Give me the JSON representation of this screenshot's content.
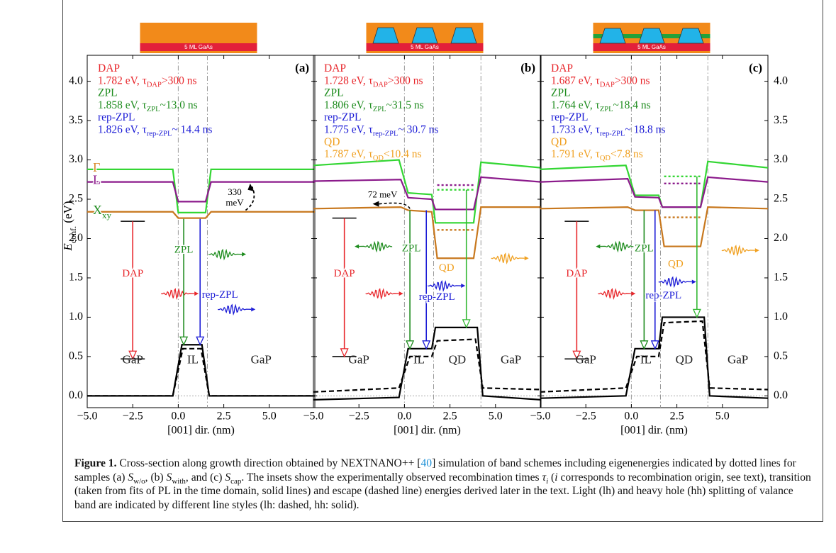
{
  "chart_data": [
    {
      "type": "band",
      "title": "(a)",
      "ylabel": {
        "text": "E",
        "sub": "conf.",
        "unit": " (eV)"
      },
      "xlabel": "[001] dir. (nm)",
      "xlim": [
        -5,
        7.5
      ],
      "ylim": [
        -0.15,
        4.33
      ],
      "xticks": [
        {
          "value": -5,
          "label": "−5.0"
        },
        {
          "value": -2.5,
          "label": "−2.5"
        },
        {
          "value": 0,
          "label": "0.0"
        },
        2.5,
        {
          "value": 5,
          "label": "5.0"
        }
      ],
      "yticks": [
        {
          "value": 0,
          "label": "0.0"
        },
        0.5,
        {
          "value": 1,
          "label": "1.0"
        },
        1.5,
        {
          "value": 2,
          "label": "2.0"
        },
        2.5,
        {
          "value": 3,
          "label": "3.0"
        },
        3.5,
        {
          "value": 4,
          "label": "4.0"
        }
      ],
      "ytick_labels": "left",
      "boundaries": [
        0,
        1.6
      ],
      "inset": {
        "label": "5 ML GaAs",
        "dots": false,
        "cap": false
      },
      "series": [
        {
          "color": "#33d633",
          "dash": "solid",
          "x": [
            -5,
            -0.3,
            0,
            1.5,
            1.8,
            7.5
          ],
          "values": [
            2.88,
            2.88,
            2.33,
            2.33,
            2.88,
            2.88
          ]
        },
        {
          "color": "#8b1a8b",
          "dash": "solid",
          "x": [
            -5,
            -0.3,
            0,
            1.5,
            1.8,
            7.5
          ],
          "values": [
            2.72,
            2.72,
            2.47,
            2.47,
            2.72,
            2.72
          ]
        },
        {
          "color": "#c8781e",
          "dash": "solid",
          "x": [
            -5,
            -0.3,
            0,
            1.5,
            1.8,
            7.5
          ],
          "values": [
            2.34,
            2.34,
            2.26,
            2.26,
            2.34,
            2.34
          ]
        },
        {
          "color": "#000000",
          "dash": "solid",
          "x": [
            -5,
            -0.3,
            0.2,
            1.3,
            1.7,
            7.5
          ],
          "values": [
            0,
            0,
            0.65,
            0.65,
            0,
            0
          ]
        },
        {
          "color": "#000000",
          "dash": "dashed",
          "x": [
            -5,
            -0.3,
            0.25,
            1.25,
            1.7,
            7.5
          ],
          "values": [
            0,
            0,
            0.6,
            0.6,
            0,
            0
          ]
        }
      ],
      "band_labels": [
        {
          "text": "Γ",
          "color": "#d88a2a",
          "series": 0
        },
        {
          "text": "L",
          "color": "#8b1a8b",
          "series": 1
        },
        {
          "text": "X",
          "sub": "xy",
          "color": "#1e8c1e",
          "series": 2
        }
      ],
      "eigen": [],
      "transitions": [
        {
          "label": "DAP",
          "color": "#e8262b",
          "label_color": "#e8262b",
          "x": -2.5,
          "from": 2.22,
          "to": 0.47,
          "bars": true
        },
        {
          "label": "ZPL",
          "color": "#1e8c1e",
          "label_color": "#1e8c1e",
          "x": 0.3,
          "from": 2.25,
          "to": 0.65,
          "bars": false
        },
        {
          "label": "rep-ZPL",
          "color": "#1c1cd6",
          "label_color": "#1c1cd6",
          "x": 1.2,
          "from": 2.25,
          "to": 0.65,
          "bars": false
        }
      ],
      "regions": [
        "GaP",
        "IL",
        "GaP"
      ],
      "annotation": [
        "330",
        "meV"
      ],
      "info": [
        {
          "color": "#e8262b",
          "text": "DAP"
        },
        {
          "color": "#e8262b",
          "text": "1.782 eV, τ",
          "sub": "DAP",
          "rest": ">300 ns"
        },
        {
          "color": "#1e8c1e",
          "text": "ZPL"
        },
        {
          "color": "#1e8c1e",
          "text": "1.858 eV, τ",
          "sub": "ZPL",
          "rest": "~13.0 ns"
        },
        {
          "color": "#1c1cd6",
          "text": "rep-ZPL"
        },
        {
          "color": "#1c1cd6",
          "text": "1.826 eV, τ",
          "sub": "rep-ZPL",
          "rest": "~ 14.4 ns"
        }
      ]
    },
    {
      "type": "band",
      "title": "(b)",
      "xlabel": "[001] dir. (nm)",
      "xlim": [
        -5,
        7.5
      ],
      "ylim": [
        -0.15,
        4.33
      ],
      "xticks": [
        {
          "value": -5,
          "label": "−5.0"
        },
        {
          "value": -2.5,
          "label": "−2.5"
        },
        {
          "value": 0,
          "label": "0.0"
        },
        2.5,
        {
          "value": 5,
          "label": "5.0"
        }
      ],
      "yticks": [
        {
          "value": 0,
          "label": "0.0"
        },
        0.5,
        {
          "value": 1,
          "label": "1.0"
        },
        1.5,
        {
          "value": 2,
          "label": "2.0"
        },
        2.5,
        {
          "value": 3,
          "label": "3.0"
        },
        3.5,
        {
          "value": 4,
          "label": "4.0"
        }
      ],
      "ytick_labels": "none",
      "boundaries": [
        0,
        1.6,
        4.2
      ],
      "inset": {
        "label": "5 ML GaAs",
        "dots": true,
        "cap": false
      },
      "series": [
        {
          "color": "#33d633",
          "dash": "solid",
          "x": [
            -5,
            -0.3,
            0.2,
            1.5,
            1.7,
            3.8,
            4.2,
            7.5
          ],
          "values": [
            2.93,
            3.0,
            2.58,
            2.56,
            2.2,
            2.2,
            2.97,
            2.9
          ]
        },
        {
          "color": "#8b1a8b",
          "dash": "solid",
          "x": [
            -5,
            -0.2,
            0.2,
            1.5,
            1.7,
            3.8,
            4.2,
            7.5
          ],
          "values": [
            2.73,
            2.75,
            2.52,
            2.5,
            2.37,
            2.37,
            2.78,
            2.72
          ]
        },
        {
          "color": "#c8781e",
          "dash": "solid",
          "x": [
            -5,
            -0.2,
            0.2,
            1.5,
            1.8,
            3.8,
            4.2,
            7.5
          ],
          "values": [
            2.38,
            2.4,
            2.36,
            2.34,
            1.75,
            1.75,
            2.4,
            2.4
          ]
        },
        {
          "color": "#000000",
          "dash": "solid",
          "x": [
            -5,
            -0.3,
            0.2,
            1.5,
            1.7,
            4.0,
            4.3,
            7.5
          ],
          "values": [
            -0.05,
            -0.02,
            0.6,
            0.6,
            0.87,
            0.87,
            0,
            -0.05
          ]
        },
        {
          "color": "#000000",
          "dash": "dashed",
          "x": [
            -5,
            -0.3,
            0.3,
            1.5,
            1.8,
            3.9,
            4.3,
            7.5
          ],
          "values": [
            0.05,
            0.1,
            0.5,
            0.5,
            0.7,
            0.72,
            0.1,
            0.08
          ]
        }
      ],
      "band_labels": [],
      "eigen": [
        {
          "color": "#33d633",
          "value": 2.62,
          "x0": 1.8,
          "x1": 3.8
        },
        {
          "color": "#8b1a8b",
          "value": 2.68,
          "x0": 1.8,
          "x1": 3.8
        },
        {
          "color": "#c8781e",
          "value": 2.11,
          "x0": 1.8,
          "x1": 3.8
        }
      ],
      "transitions": [
        {
          "label": "DAP",
          "color": "#e8262b",
          "label_color": "#e8262b",
          "x": -3.3,
          "from": 2.26,
          "to": 0.5,
          "bars": true
        },
        {
          "label": "ZPL",
          "color": "#1e8c1e",
          "label_color": "#1e8c1e",
          "x": 0.3,
          "from": 2.36,
          "to": 0.6,
          "bars": false
        },
        {
          "label": "rep-ZPL",
          "color": "#1c1cd6",
          "label_color": "#1c1cd6",
          "x": 1.2,
          "from": 2.36,
          "to": 0.6,
          "bars": false
        },
        {
          "label": "QD",
          "color": "#33b833",
          "label_color": "#f0a020",
          "x": 3.4,
          "from": 2.62,
          "to": 0.87,
          "bars": false
        }
      ],
      "regions": [
        "GaP",
        "IL",
        "QD",
        "GaP"
      ],
      "annotation": [
        "72 meV"
      ],
      "info": [
        {
          "color": "#e8262b",
          "text": "DAP"
        },
        {
          "color": "#e8262b",
          "text": "1.728 eV, τ",
          "sub": "DAP",
          "rest": ">300 ns"
        },
        {
          "color": "#1e8c1e",
          "text": "ZPL"
        },
        {
          "color": "#1e8c1e",
          "text": "1.806 eV, τ",
          "sub": "ZPL",
          "rest": "~31.5 ns"
        },
        {
          "color": "#1c1cd6",
          "text": "rep-ZPL"
        },
        {
          "color": "#1c1cd6",
          "text": "1.775 eV, τ",
          "sub": "rep-ZPL",
          "rest": "~ 30.7 ns"
        },
        {
          "color": "#f0a020",
          "text": "QD"
        },
        {
          "color": "#f0a020",
          "text": "1.787 eV, τ",
          "sub": "QD",
          "rest": "<10.4 ns"
        }
      ]
    },
    {
      "type": "band",
      "title": "(c)",
      "xlabel": "[001] dir. (nm)",
      "xlim": [
        -5,
        7.5
      ],
      "ylim": [
        -0.15,
        4.33
      ],
      "xticks": [
        {
          "value": -5,
          "label": "−5.0"
        },
        {
          "value": -2.5,
          "label": "−2.5"
        },
        {
          "value": 0,
          "label": "0.0"
        },
        2.5,
        {
          "value": 5,
          "label": "5.0"
        }
      ],
      "yticks": [
        {
          "value": 0,
          "label": "0.0"
        },
        0.5,
        {
          "value": 1,
          "label": "1.0"
        },
        1.5,
        {
          "value": 2,
          "label": "2.0"
        },
        2.5,
        {
          "value": 3,
          "label": "3.0"
        },
        3.5,
        {
          "value": 4,
          "label": "4.0"
        }
      ],
      "ytick_labels": "right",
      "boundaries": [
        0,
        1.6,
        4.2
      ],
      "inset": {
        "label": "5 ML GaAs",
        "dots": true,
        "cap": true
      },
      "series": [
        {
          "color": "#33d633",
          "dash": "solid",
          "x": [
            -5,
            -0.3,
            0.2,
            1.5,
            1.7,
            3.8,
            4.2,
            7.5
          ],
          "values": [
            2.88,
            2.93,
            2.55,
            2.55,
            2.4,
            2.4,
            2.98,
            2.9
          ]
        },
        {
          "color": "#8b1a8b",
          "dash": "solid",
          "x": [
            -5,
            -0.2,
            0.2,
            1.5,
            1.7,
            3.8,
            4.2,
            7.5
          ],
          "values": [
            2.72,
            2.76,
            2.53,
            2.52,
            2.4,
            2.4,
            2.78,
            2.72
          ]
        },
        {
          "color": "#c8781e",
          "dash": "solid",
          "x": [
            -5,
            -0.2,
            0.2,
            1.5,
            1.8,
            3.8,
            4.2,
            7.5
          ],
          "values": [
            2.38,
            2.4,
            2.36,
            2.36,
            1.9,
            1.9,
            2.4,
            2.38
          ]
        },
        {
          "color": "#000000",
          "dash": "solid",
          "x": [
            -5,
            -0.3,
            0.2,
            1.5,
            1.7,
            4.0,
            4.3,
            7.5
          ],
          "values": [
            -0.03,
            0,
            0.6,
            0.6,
            1.0,
            1.0,
            0,
            -0.03
          ]
        },
        {
          "color": "#000000",
          "dash": "dashed",
          "x": [
            -5,
            -0.3,
            0.3,
            1.5,
            1.8,
            3.9,
            4.3,
            7.5
          ],
          "values": [
            0.05,
            0.1,
            0.5,
            0.5,
            0.93,
            0.95,
            0.1,
            0.08
          ]
        }
      ],
      "band_labels": [],
      "eigen": [
        {
          "color": "#33d633",
          "value": 2.79,
          "x0": 1.8,
          "x1": 3.8
        },
        {
          "color": "#8b1a8b",
          "value": 2.7,
          "x0": 1.8,
          "x1": 3.8
        },
        {
          "color": "#c8781e",
          "value": 2.27,
          "x0": 1.8,
          "x1": 3.8
        }
      ],
      "transitions": [
        {
          "label": "DAP",
          "color": "#e8262b",
          "label_color": "#e8262b",
          "x": -3.0,
          "from": 2.22,
          "to": 0.47,
          "bars": true
        },
        {
          "label": "ZPL",
          "color": "#1e8c1e",
          "label_color": "#1e8c1e",
          "x": 0.7,
          "from": 2.36,
          "to": 0.6,
          "bars": false
        },
        {
          "label": "rep-ZPL",
          "color": "#1c1cd6",
          "label_color": "#1c1cd6",
          "x": 1.3,
          "from": 2.36,
          "to": 0.6,
          "bars": false
        },
        {
          "label": "QD",
          "color": "#33b833",
          "label_color": "#f0a020",
          "x": 3.6,
          "from": 2.79,
          "to": 1.0,
          "bars": false
        }
      ],
      "regions": [
        "GaP",
        "IL",
        "QD",
        "GaP"
      ],
      "info": [
        {
          "color": "#e8262b",
          "text": "DAP"
        },
        {
          "color": "#e8262b",
          "text": "1.687 eV, τ",
          "sub": "DAP",
          "rest": ">300 ns"
        },
        {
          "color": "#1e8c1e",
          "text": "ZPL"
        },
        {
          "color": "#1e8c1e",
          "text": "1.764 eV, τ",
          "sub": "ZPL",
          "rest": "~18.4 ns"
        },
        {
          "color": "#1c1cd6",
          "text": "rep-ZPL"
        },
        {
          "color": "#1c1cd6",
          "text": "1.733 eV, τ",
          "sub": "rep-ZPL",
          "rest": "~ 18.8 ns"
        },
        {
          "color": "#f0a020",
          "text": "QD"
        },
        {
          "color": "#f0a020",
          "text": "1.791 eV, τ",
          "sub": "QD",
          "rest": "<7.8 ns"
        }
      ]
    }
  ],
  "caption": [
    {
      "text": "Figure 1.",
      "style": "bold"
    },
    {
      "text": "  Cross-section along growth direction obtained by NEXTNANO++ [",
      "style": "plain"
    },
    {
      "text": "40",
      "style": "link"
    },
    {
      "text": "] simulation of band schemes including eigenenergies indicated by dotted lines for samples (a) ",
      "style": "plain"
    },
    {
      "text": "S",
      "style": "italic"
    },
    {
      "text": "w/o",
      "style": "sub"
    },
    {
      "text": ", (b) ",
      "style": "plain"
    },
    {
      "text": "S",
      "style": "italic"
    },
    {
      "text": "with",
      "style": "sub"
    },
    {
      "text": ", and (c) ",
      "style": "plain"
    },
    {
      "text": "S",
      "style": "italic"
    },
    {
      "text": "cap",
      "style": "sub"
    },
    {
      "text": ". The insets show the experimentally observed recombination times ",
      "style": "plain"
    },
    {
      "text": "τ",
      "style": "italic"
    },
    {
      "text": "i",
      "style": "isub"
    },
    {
      "text": " (",
      "style": "plain"
    },
    {
      "text": "i",
      "style": "italic"
    },
    {
      "text": " corresponds to recombination origin, see text), transition (taken from fits of PL in the time domain, solid lines) and escape (dashed line) energies derived later in the text. Light (lh) and heavy hole (hh) splitting of valance band are indicated by different line styles (lh: dashed, hh: solid).",
      "style": "plain"
    }
  ]
}
